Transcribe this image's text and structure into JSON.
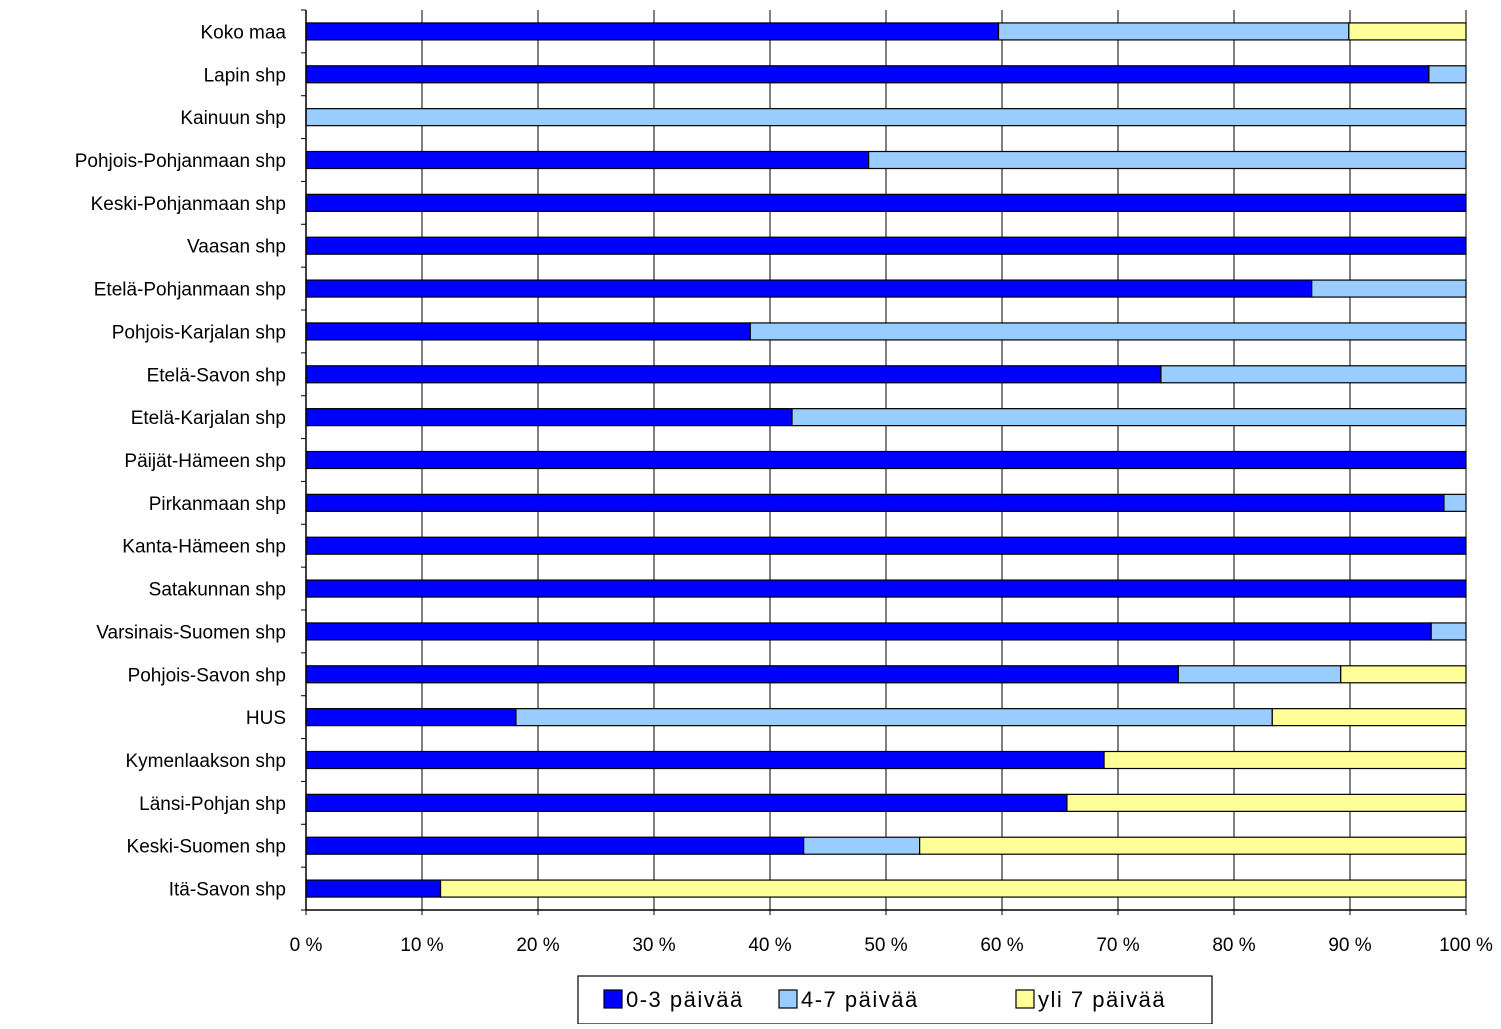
{
  "chart_data": {
    "type": "bar",
    "orientation": "horizontal",
    "stacked": "percent",
    "categories": [
      "Koko maa",
      "Lapin shp",
      "Kainuun shp",
      "Pohjois-Pohjanmaan shp",
      "Keski-Pohjanmaan shp",
      "Vaasan shp",
      "Etelä-Pohjanmaan shp",
      "Pohjois-Karjalan shp",
      "Etelä-Savon shp",
      "Etelä-Karjalan shp",
      "Päijät-Hämeen shp",
      "Pirkanmaan shp",
      "Kanta-Hämeen shp",
      "Satakunnan shp",
      "Varsinais-Suomen shp",
      "Pohjois-Savon shp",
      "HUS",
      "Kymenlaakson shp",
      "Länsi-Pohjan shp",
      "Keski-Suomen shp",
      "Itä-Savon shp"
    ],
    "series": [
      {
        "name": "0-3 päivää",
        "color": "#0000ff",
        "values": [
          59.7,
          96.8,
          0,
          48.5,
          100,
          100,
          86.7,
          38.3,
          73.7,
          41.9,
          100,
          98.1,
          100,
          100,
          97.0,
          75.2,
          18.1,
          68.8,
          65.6,
          42.9,
          11.6
        ]
      },
      {
        "name": "4-7 päivää",
        "color": "#99ccff",
        "values": [
          30.2,
          3.2,
          100,
          51.5,
          0,
          0,
          13.3,
          61.7,
          26.3,
          58.1,
          0,
          1.9,
          0,
          0,
          3.0,
          14.0,
          65.2,
          0,
          0,
          10.0,
          0
        ]
      },
      {
        "name": "yli 7 päivää",
        "color": "#ffff99",
        "values": [
          10.1,
          0,
          0,
          0,
          0,
          0,
          0,
          0,
          0,
          0,
          0,
          0,
          0,
          0,
          0,
          10.8,
          16.7,
          31.2,
          34.4,
          47.1,
          88.4
        ]
      }
    ],
    "x_ticks": [
      "0 %",
      "10 %",
      "20 %",
      "30 %",
      "40 %",
      "50 %",
      "60 %",
      "70 %",
      "80 %",
      "90 %",
      "100 %"
    ],
    "xlim": [
      0,
      100
    ],
    "grid": true,
    "legend_position": "bottom"
  }
}
